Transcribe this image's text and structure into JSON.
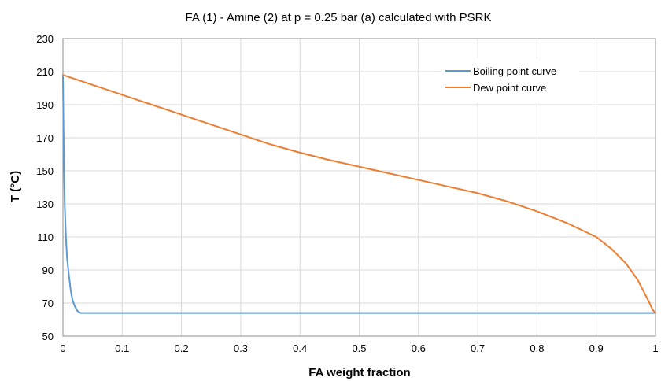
{
  "chart_data": {
    "type": "line",
    "title": "FA (1) - Amine (2) at p = 0.25 bar (a) calculated with PSRK",
    "xlabel": "FA weight fraction",
    "ylabel": "T (°C)",
    "xlim": [
      0,
      1
    ],
    "ylim": [
      50,
      230
    ],
    "xticks": [
      0,
      0.1,
      0.2,
      0.3,
      0.4,
      0.5,
      0.6,
      0.7,
      0.8,
      0.9,
      1
    ],
    "xtick_labels": [
      "0",
      "0.1",
      "0.2",
      "0.3",
      "0.4",
      "0.5",
      "0.6",
      "0.7",
      "0.8",
      "0.9",
      "1"
    ],
    "yticks": [
      50,
      70,
      90,
      110,
      130,
      150,
      170,
      190,
      210,
      230
    ],
    "ytick_labels": [
      "50",
      "70",
      "90",
      "110",
      "130",
      "150",
      "170",
      "190",
      "210",
      "230"
    ],
    "grid": true,
    "legend_position": "top-right",
    "series": [
      {
        "name": "Boiling point curve",
        "color": "#5B9BD5",
        "x": [
          0,
          0.0005,
          0.001,
          0.002,
          0.003,
          0.005,
          0.007,
          0.01,
          0.013,
          0.016,
          0.02,
          0.025,
          0.03,
          0.1,
          0.2,
          0.3,
          0.4,
          0.5,
          0.6,
          0.7,
          0.8,
          0.9,
          1.0
        ],
        "y": [
          208,
          190,
          175,
          150,
          130,
          110,
          97,
          87,
          78,
          72,
          68,
          65,
          64,
          64,
          64,
          64,
          64,
          64,
          64,
          64,
          64,
          64,
          64
        ]
      },
      {
        "name": "Dew point curve",
        "color": "#ED7D31",
        "x": [
          0,
          0.05,
          0.1,
          0.15,
          0.2,
          0.25,
          0.3,
          0.35,
          0.4,
          0.45,
          0.5,
          0.55,
          0.6,
          0.65,
          0.7,
          0.75,
          0.8,
          0.85,
          0.9,
          0.925,
          0.95,
          0.97,
          0.98,
          0.99,
          0.995,
          1.0
        ],
        "y": [
          208,
          202,
          196,
          190,
          184,
          178,
          172,
          166,
          161,
          156.5,
          152.5,
          148.5,
          144.5,
          140.5,
          136.5,
          131.5,
          125.5,
          118.5,
          110,
          103,
          94,
          84,
          77,
          70,
          66,
          64
        ]
      }
    ]
  }
}
